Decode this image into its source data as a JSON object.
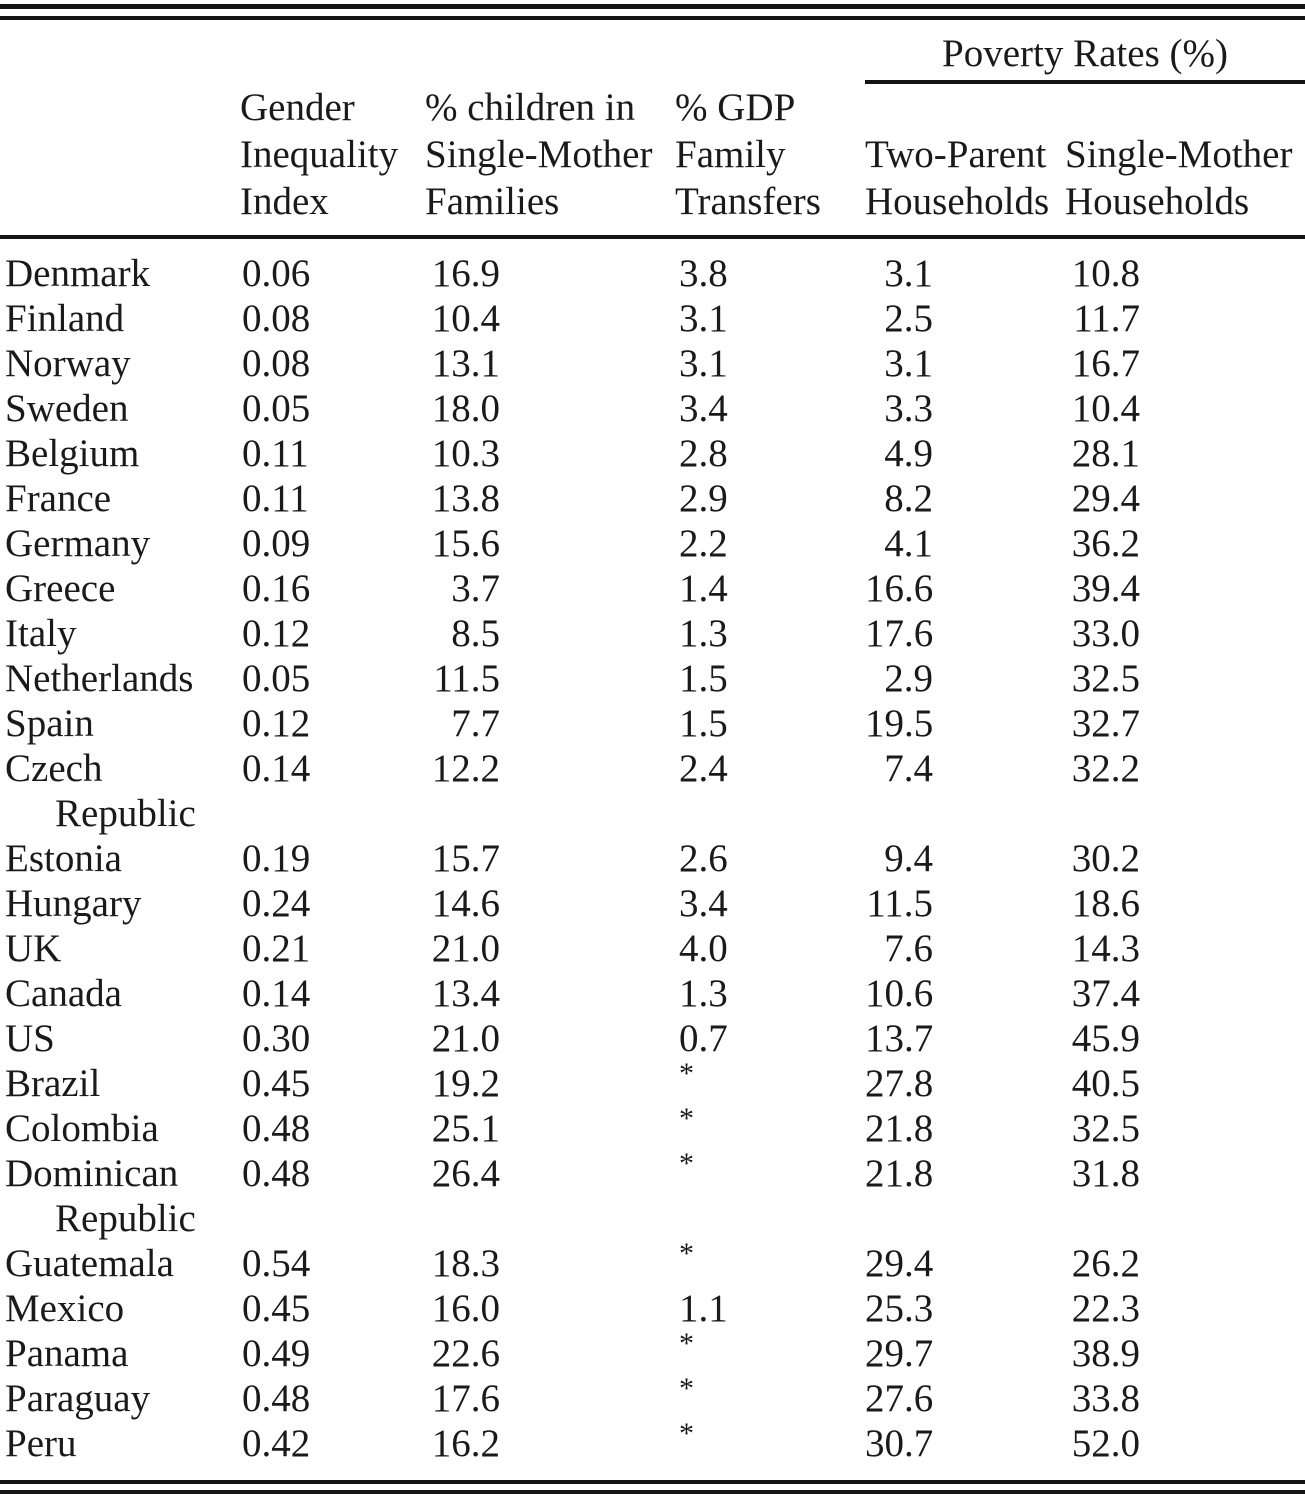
{
  "table": {
    "poverty_header": "Poverty Rates (%)",
    "footnote_symbol": "*",
    "columns": {
      "country": "",
      "gii": [
        "Gender",
        "Inequality",
        "Index"
      ],
      "children": [
        "% children in",
        "Single-Mother",
        "Families"
      ],
      "gdp": [
        "% GDP",
        "Family",
        "Transfers"
      ],
      "two_parent": [
        "Two-Parent",
        "Households"
      ],
      "single_mother": [
        "Single-Mother",
        "Households"
      ]
    },
    "rows": [
      {
        "country": "Denmark",
        "gii": "0.06",
        "children": "16.9",
        "gdp": "3.8",
        "two_parent": "3.1",
        "single_mother": "10.8"
      },
      {
        "country": "Finland",
        "gii": "0.08",
        "children": "10.4",
        "gdp": "3.1",
        "two_parent": "2.5",
        "single_mother": "11.7"
      },
      {
        "country": "Norway",
        "gii": "0.08",
        "children": "13.1",
        "gdp": "3.1",
        "two_parent": "3.1",
        "single_mother": "16.7"
      },
      {
        "country": "Sweden",
        "gii": "0.05",
        "children": "18.0",
        "gdp": "3.4",
        "two_parent": "3.3",
        "single_mother": "10.4"
      },
      {
        "country": "Belgium",
        "gii": "0.11",
        "children": "10.3",
        "gdp": "2.8",
        "two_parent": "4.9",
        "single_mother": "28.1"
      },
      {
        "country": "France",
        "gii": "0.11",
        "children": "13.8",
        "gdp": "2.9",
        "two_parent": "8.2",
        "single_mother": "29.4"
      },
      {
        "country": "Germany",
        "gii": "0.09",
        "children": "15.6",
        "gdp": "2.2",
        "two_parent": "4.1",
        "single_mother": "36.2"
      },
      {
        "country": "Greece",
        "gii": "0.16",
        "children": "3.7",
        "gdp": "1.4",
        "two_parent": "16.6",
        "single_mother": "39.4"
      },
      {
        "country": "Italy",
        "gii": "0.12",
        "children": "8.5",
        "gdp": "1.3",
        "two_parent": "17.6",
        "single_mother": "33.0"
      },
      {
        "country": "Netherlands",
        "gii": "0.05",
        "children": "11.5",
        "gdp": "1.5",
        "two_parent": "2.9",
        "single_mother": "32.5"
      },
      {
        "country": "Spain",
        "gii": "0.12",
        "children": "7.7",
        "gdp": "1.5",
        "two_parent": "19.5",
        "single_mother": "32.7"
      },
      {
        "country": "Czech",
        "country_line2": "Republic",
        "gii": "0.14",
        "children": "12.2",
        "gdp": "2.4",
        "two_parent": "7.4",
        "single_mother": "32.2"
      },
      {
        "country": "Estonia",
        "gii": "0.19",
        "children": "15.7",
        "gdp": "2.6",
        "two_parent": "9.4",
        "single_mother": "30.2"
      },
      {
        "country": "Hungary",
        "gii": "0.24",
        "children": "14.6",
        "gdp": "3.4",
        "two_parent": "11.5",
        "single_mother": "18.6"
      },
      {
        "country": "UK",
        "gii": "0.21",
        "children": "21.0",
        "gdp": "4.0",
        "two_parent": "7.6",
        "single_mother": "14.3"
      },
      {
        "country": "Canada",
        "gii": "0.14",
        "children": "13.4",
        "gdp": "1.3",
        "two_parent": "10.6",
        "single_mother": "37.4"
      },
      {
        "country": "US",
        "gii": "0.30",
        "children": "21.0",
        "gdp": "0.7",
        "two_parent": "13.7",
        "single_mother": "45.9"
      },
      {
        "country": "Brazil",
        "gii": "0.45",
        "children": "19.2",
        "gdp": "*",
        "two_parent": "27.8",
        "single_mother": "40.5"
      },
      {
        "country": "Colombia",
        "gii": "0.48",
        "children": "25.1",
        "gdp": "*",
        "two_parent": "21.8",
        "single_mother": "32.5"
      },
      {
        "country": "Dominican",
        "country_line2": "Republic",
        "gii": "0.48",
        "children": "26.4",
        "gdp": "*",
        "two_parent": "21.8",
        "single_mother": "31.8"
      },
      {
        "country": "Guatemala",
        "gii": "0.54",
        "children": "18.3",
        "gdp": "*",
        "two_parent": "29.4",
        "single_mother": "26.2"
      },
      {
        "country": "Mexico",
        "gii": "0.45",
        "children": "16.0",
        "gdp": "1.1",
        "two_parent": "25.3",
        "single_mother": "22.3"
      },
      {
        "country": "Panama",
        "gii": "0.49",
        "children": "22.6",
        "gdp": "*",
        "two_parent": "29.7",
        "single_mother": "38.9"
      },
      {
        "country": "Paraguay",
        "gii": "0.48",
        "children": "17.6",
        "gdp": "*",
        "two_parent": "27.6",
        "single_mother": "33.8"
      },
      {
        "country": "Peru",
        "gii": "0.42",
        "children": "16.2",
        "gdp": "*",
        "two_parent": "30.7",
        "single_mother": "52.0"
      }
    ]
  }
}
